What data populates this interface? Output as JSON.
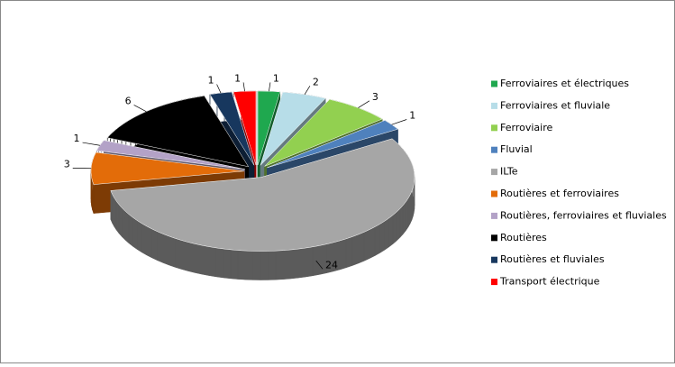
{
  "chart_data": {
    "type": "pie",
    "categories": [
      "Ferroviaires et électriques",
      "Ferroviaires et fluviale",
      "Ferroviaire",
      "Fluvial",
      "ILTe",
      "Routières et ferroviaires",
      "Routières, ferroviaires et fluviales",
      "Routières",
      "Routières et fluviales",
      "Transport électrique"
    ],
    "values": [
      1,
      2,
      3,
      1,
      24,
      3,
      1,
      6,
      1,
      1
    ],
    "colors": [
      "#1fa84f",
      "#b7dde8",
      "#92d050",
      "#4f81bd",
      "#a6a6a6",
      "#e36c09",
      "#b3a2c7",
      "#000000",
      "#17375e",
      "#ff0000"
    ],
    "legend": "right"
  }
}
